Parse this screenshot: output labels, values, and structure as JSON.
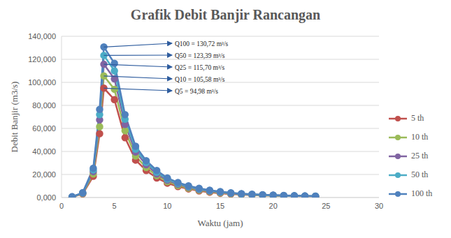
{
  "chart_data": {
    "type": "line",
    "title": "Grafik Debit Banjir Rancangan",
    "x_label": "Waktu (jam)",
    "y_label": "Debit Banjir (m3/s)",
    "x": [
      1,
      2,
      3,
      3.6,
      4,
      5,
      6,
      7,
      8,
      9,
      10,
      11,
      12,
      13,
      14,
      15,
      16,
      17,
      18,
      19,
      20,
      21,
      22,
      23,
      24
    ],
    "series": [
      {
        "name": "5 th",
        "color": "#c0504d",
        "marker": "circle",
        "values": [
          0.5,
          3.2,
          18.5,
          55.5,
          94.98,
          85,
          52,
          32.5,
          23.5,
          17,
          12.5,
          9.5,
          7.5,
          5.8,
          4.6,
          3.7,
          3,
          2.5,
          2.1,
          1.8,
          1.6,
          1.4,
          1.2,
          1.1,
          1
        ]
      },
      {
        "name": "10 th",
        "color": "#9bbb59",
        "marker": "circle",
        "values": [
          0.5,
          3.5,
          20.5,
          61.5,
          105.58,
          94,
          58,
          36,
          26,
          19,
          13.8,
          10.5,
          8.2,
          6.4,
          5.1,
          4.1,
          3.3,
          2.8,
          2.3,
          2,
          1.7,
          1.5,
          1.3,
          1.2,
          1.1
        ]
      },
      {
        "name": "25 th",
        "color": "#8064a2",
        "marker": "circle",
        "values": [
          0.6,
          3.8,
          22.5,
          67.5,
          115.7,
          103,
          63.5,
          39.5,
          28.5,
          20.5,
          15,
          11.5,
          9,
          7,
          5.6,
          4.5,
          3.6,
          3,
          2.5,
          2.2,
          1.9,
          1.6,
          1.4,
          1.3,
          1.1
        ]
      },
      {
        "name": "50 th",
        "color": "#4bacc6",
        "marker": "circle",
        "values": [
          0.6,
          4,
          24,
          72,
          123.39,
          110,
          68,
          42,
          30.5,
          22,
          16,
          12.2,
          9.6,
          7.5,
          6,
          4.8,
          3.9,
          3.2,
          2.7,
          2.3,
          2,
          1.7,
          1.5,
          1.3,
          1.2
        ]
      },
      {
        "name": "100 th",
        "color": "#4f81bd",
        "marker": "circle",
        "values": [
          0.7,
          4.2,
          25.5,
          76.5,
          130.72,
          116.5,
          72,
          44.5,
          32,
          23.5,
          17,
          13,
          10.2,
          8,
          6.4,
          5.1,
          4.1,
          3.4,
          2.9,
          2.5,
          2.1,
          1.8,
          1.6,
          1.4,
          1.2
        ]
      }
    ],
    "xlim": [
      0,
      30
    ],
    "xticks": [
      0,
      5,
      10,
      15,
      20,
      25,
      30
    ],
    "ylim": [
      0,
      140
    ],
    "yticks": [
      {
        "value": 0,
        "label": "0,000"
      },
      {
        "value": 20,
        "label": "20,000"
      },
      {
        "value": 40,
        "label": "40,000"
      },
      {
        "value": 60,
        "label": "60,000"
      },
      {
        "value": 80,
        "label": "80,000"
      },
      {
        "value": 100,
        "label": "100,000"
      },
      {
        "value": 120,
        "label": "120,000"
      },
      {
        "value": 140,
        "label": "140,000"
      }
    ],
    "grid": true,
    "legend": "right",
    "annotations": [
      {
        "text": "Q100 = 130,72 m³/s",
        "x": 4,
        "y": 130.72
      },
      {
        "text": "Q50 = 123,39 m³/s",
        "x": 4,
        "y": 123.39
      },
      {
        "text": "Q25 = 115,70 m³/s",
        "x": 4,
        "y": 115.7
      },
      {
        "text": "Q10 = 105,58 m³/s",
        "x": 4,
        "y": 105.58
      },
      {
        "text": "Q5 = 94,98 m³/s",
        "x": 4,
        "y": 94.98
      }
    ]
  }
}
